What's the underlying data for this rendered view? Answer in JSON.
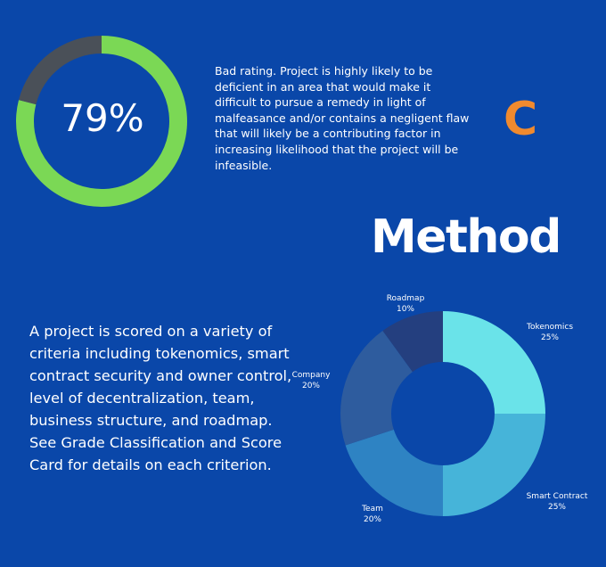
{
  "score": {
    "value": 79,
    "label": "79%",
    "colors": {
      "filled": "#7bd855",
      "remaining": "#4a5058"
    }
  },
  "rating": {
    "description": "Bad rating. Project is highly likely to be deficient in an area that would make it difficult to pursue a remedy in light of malfeasance and/or contains a negligent flaw that will likely be a contributing factor in increasing likelihood that the project will be infeasible.",
    "grade": "C",
    "grade_color": "#f08a2e"
  },
  "method": {
    "title": "Method",
    "description": "A project is scored on a variety of criteria including tokenomics, smart contract security and owner control, level of decentralization, team, business structure, and roadmap. See Grade Classification and Score Card for details on each criterion."
  },
  "chart_data": [
    {
      "type": "pie",
      "variant": "donut",
      "categories": [
        "79%",
        ""
      ],
      "values": [
        79,
        21
      ],
      "colors": [
        "#7bd855",
        "#4a5058"
      ]
    },
    {
      "type": "pie",
      "variant": "donut",
      "categories": [
        "Tokenomics",
        "Smart Contract",
        "Team",
        "Company",
        "Roadmap"
      ],
      "values": [
        25,
        25,
        20,
        20,
        10
      ],
      "percent_labels": [
        "25%",
        "25%",
        "20%",
        "20%",
        "10%"
      ],
      "colors": [
        "#6ae3e9",
        "#46b4d9",
        "#2e83c3",
        "#2e5c9e",
        "#243f7f"
      ]
    }
  ]
}
